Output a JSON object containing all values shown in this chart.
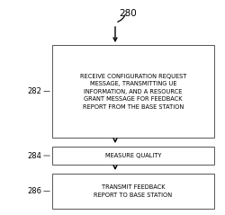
{
  "title_label": "280",
  "box1_label": "282",
  "box2_label": "284",
  "box3_label": "286",
  "box1_text": "RECEIVE CONFIGURATION REQUEST\nMESSAGE, TRANSMITTING UE\nINFORMATION, AND A RESOURCE\nGRANT MESSAGE FOR FEEDBACK\nREPORT FROM THE BASE STATION",
  "box2_text": "MEASURE QUALITY",
  "box3_text": "TRANSMIT FEEDBACK\nREPORT TO BASE STATION",
  "bg_color": "#ffffff",
  "box_color": "#ffffff",
  "edge_color": "#555555",
  "text_color": "#000000",
  "arrow_color": "#000000",
  "title_fontsize": 7.5,
  "label_fontsize": 6.0,
  "text_fontsize": 4.8
}
